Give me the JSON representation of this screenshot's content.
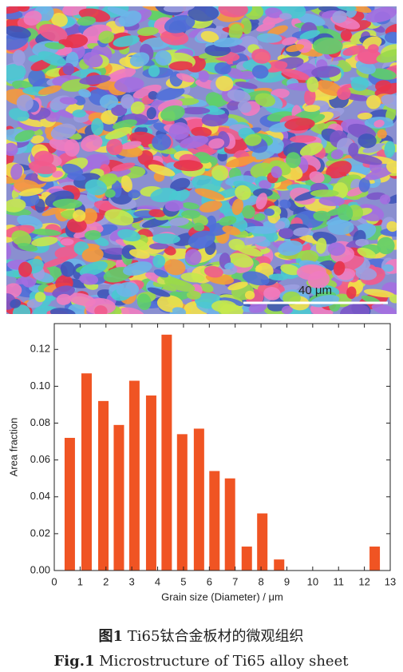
{
  "image": {
    "scale_bar": "40 μm"
  },
  "chart_data": {
    "type": "bar",
    "x": [
      0.6,
      1.25,
      1.9,
      2.5,
      3.1,
      3.75,
      4.35,
      4.95,
      5.6,
      6.2,
      6.8,
      7.45,
      8.05,
      8.7,
      12.4
    ],
    "values": [
      0.072,
      0.107,
      0.092,
      0.079,
      0.103,
      0.095,
      0.128,
      0.074,
      0.077,
      0.054,
      0.05,
      0.013,
      0.031,
      0.006,
      0.013
    ],
    "color": "#f05423",
    "xlabel": "Grain size (Diameter) / μm",
    "ylabel": "Area fraction",
    "xlim": [
      0,
      13
    ],
    "xticks": [
      0,
      1,
      2,
      3,
      4,
      5,
      6,
      7,
      8,
      9,
      10,
      11,
      12,
      13
    ],
    "ylim": [
      0,
      0.134
    ],
    "yticks": [
      {
        "value": 0,
        "label": "0.00"
      },
      {
        "value": 0.02,
        "label": "0.02"
      },
      {
        "value": 0.04,
        "label": "0.04"
      },
      {
        "value": 0.06,
        "label": "0.06"
      },
      {
        "value": 0.08,
        "label": "0.08"
      },
      {
        "value": 0.1,
        "label": "0.10"
      },
      {
        "value": 0.12,
        "label": "0.12"
      }
    ]
  },
  "caption": {
    "cn_label": "图1",
    "cn_text": "Ti65钛合金板材的微观组织",
    "en_label": "Fig.1",
    "en_text": "Microstructure of Ti65 alloy sheet"
  }
}
